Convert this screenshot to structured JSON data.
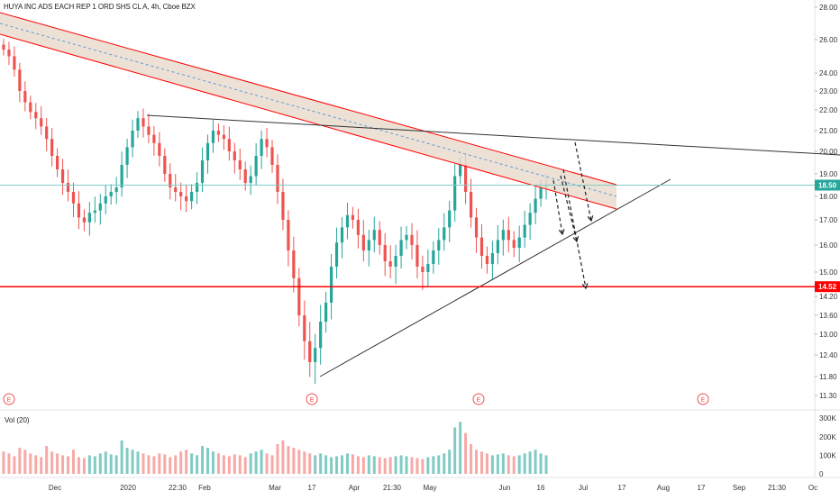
{
  "header": {
    "title": "HUYA INC ADS EACH REP 1 ORD SHS CL A, 4h, Cboe BZX"
  },
  "volume_panel": {
    "label": "Vol (20)"
  },
  "colors": {
    "up": "#26a69a",
    "down": "#ef5350",
    "resistance_band_fill": "#e9d9cc",
    "line_red": "#ff0000",
    "last_price_bg": "#26a69a",
    "level_bg": "#ff0000",
    "earnings_marker": "#ef5350"
  },
  "chart_data": {
    "type": "candlestick",
    "price_axis": {
      "ticks": [
        "28.00",
        "26.00",
        "24.00",
        "23.00",
        "22.00",
        "21.00",
        "20.00",
        "19.00",
        "18.00",
        "17.00",
        "16.00",
        "15.00",
        "14.20",
        "13.60",
        "13.00",
        "12.40",
        "11.80",
        "11.30"
      ],
      "last_price_label": "18.50",
      "level_label": "14.52"
    },
    "volume_axis": {
      "ticks": [
        "300K",
        "200K",
        "100K",
        "0"
      ]
    },
    "time_axis": {
      "ticks": [
        "Dec",
        "2020",
        "22:30",
        "Feb",
        "Mar",
        "17",
        "Apr",
        "21:30",
        "May",
        "Jun",
        "16",
        "Jul",
        "17",
        "Aug",
        "17",
        "Sep",
        "21:30",
        "Oc"
      ]
    },
    "earnings_marker_text": "E",
    "earnings_marker_count": 4,
    "series": [
      {
        "name": "close_path",
        "values": [
          25.4,
          25.0,
          24.2,
          23.0,
          22.4,
          21.9,
          21.6,
          21.2,
          20.6,
          19.8,
          19.2,
          18.6,
          18.2,
          17.7,
          17.1,
          16.9,
          17.3,
          17.4,
          17.7,
          18.0,
          18.2,
          18.4,
          19.4,
          20.2,
          21.0,
          21.6,
          21.2,
          20.8,
          20.4,
          19.8,
          19.0,
          18.4,
          18.2,
          18.0,
          17.8,
          18.2,
          18.6,
          19.6,
          20.4,
          21.0,
          20.8,
          20.6,
          20.0,
          19.6,
          19.2,
          18.6,
          18.9,
          19.8,
          20.6,
          20.2,
          19.4,
          18.2,
          17.0,
          15.8,
          14.8,
          13.6,
          12.8,
          12.2,
          12.6,
          13.4,
          14.0,
          15.2,
          16.1,
          16.7,
          17.2,
          17.0,
          16.4,
          15.8,
          16.2,
          16.6,
          16.0,
          15.4,
          15.2,
          15.6,
          16.2,
          16.4,
          16.0,
          15.2,
          15.0,
          15.3,
          15.8,
          16.2,
          16.7,
          17.4,
          18.9,
          19.4,
          18.2,
          17.1,
          16.3,
          15.6,
          15.3,
          15.7,
          16.2,
          16.6,
          16.2,
          15.9,
          16.3,
          16.8,
          17.3,
          17.9,
          18.4,
          18.5
        ]
      }
    ],
    "volume": [
      120,
      110,
      95,
      140,
      130,
      110,
      100,
      90,
      150,
      120,
      110,
      100,
      95,
      130,
      90,
      85,
      100,
      95,
      110,
      120,
      105,
      100,
      180,
      140,
      130,
      120,
      110,
      100,
      95,
      110,
      105,
      90,
      100,
      120,
      130,
      110,
      100,
      150,
      140,
      120,
      110,
      100,
      95,
      105,
      100,
      90,
      110,
      120,
      130,
      110,
      100,
      160,
      180,
      150,
      140,
      130,
      120,
      110,
      100,
      110,
      100,
      90,
      95,
      100,
      110,
      105,
      95,
      90,
      100,
      95,
      90,
      85,
      90,
      95,
      100,
      95,
      90,
      85,
      80,
      90,
      95,
      100,
      110,
      130,
      250,
      280,
      220,
      160,
      130,
      120,
      110,
      100,
      105,
      110,
      100,
      95,
      100,
      110,
      120,
      130,
      110,
      100
    ]
  }
}
